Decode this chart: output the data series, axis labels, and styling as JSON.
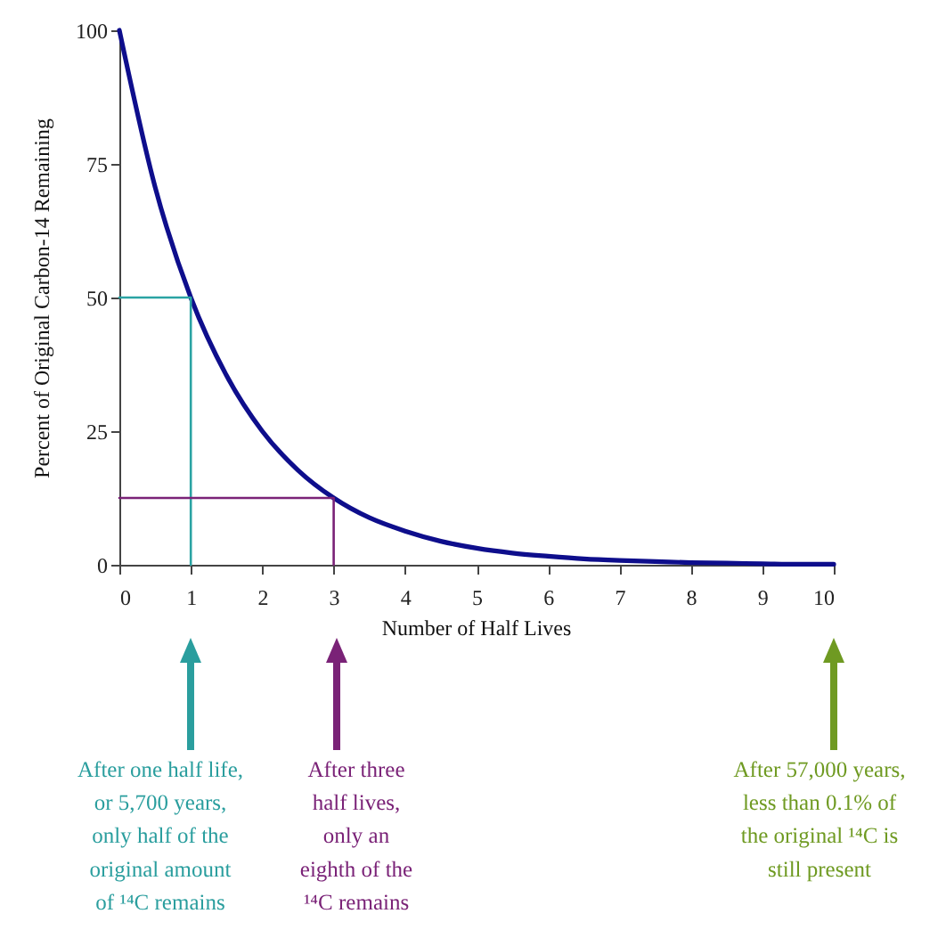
{
  "chart_data": {
    "type": "line",
    "xlabel": "Number of Half Lives",
    "ylabel": "Percent of Original Carbon-14 Remaining",
    "xlim": [
      0,
      10
    ],
    "xticks": [
      0,
      1,
      2,
      3,
      4,
      5,
      6,
      7,
      8,
      9,
      10
    ],
    "ylim": [
      0,
      100
    ],
    "yticks": [
      0,
      25,
      50,
      75,
      100
    ],
    "grid": false,
    "series": [
      {
        "color": "#0e0e8c",
        "x": [
          0,
          0.5,
          1,
          1.5,
          2,
          2.5,
          3,
          3.5,
          4,
          4.5,
          5,
          5.5,
          6,
          6.5,
          7,
          7.5,
          8,
          8.5,
          9,
          9.5,
          10
        ],
        "values": [
          100,
          70.7,
          50,
          35.4,
          25,
          17.7,
          12.5,
          8.8,
          6.3,
          4.4,
          3.1,
          2.2,
          1.6,
          1.1,
          0.8,
          0.6,
          0.4,
          0.3,
          0.2,
          0.1,
          0.1
        ]
      },
      {
        "color": "#2aa3a3",
        "x": [
          0,
          1,
          1
        ],
        "values": [
          50,
          50,
          0
        ]
      },
      {
        "color": "#7a2277",
        "x": [
          0,
          3,
          3
        ],
        "values": [
          12.5,
          12.5,
          0
        ]
      }
    ],
    "annotations": [
      "After one half life,\nor 5,700 years,\nonly half of the\noriginal amount\nof ¹⁴C remains",
      "After three\nhalf lives,\nonly an\neighth of the\n¹⁴C remains",
      "After 57,000 years,\nless than 0.1% of\nthe original ¹⁴C is\nstill present"
    ]
  }
}
